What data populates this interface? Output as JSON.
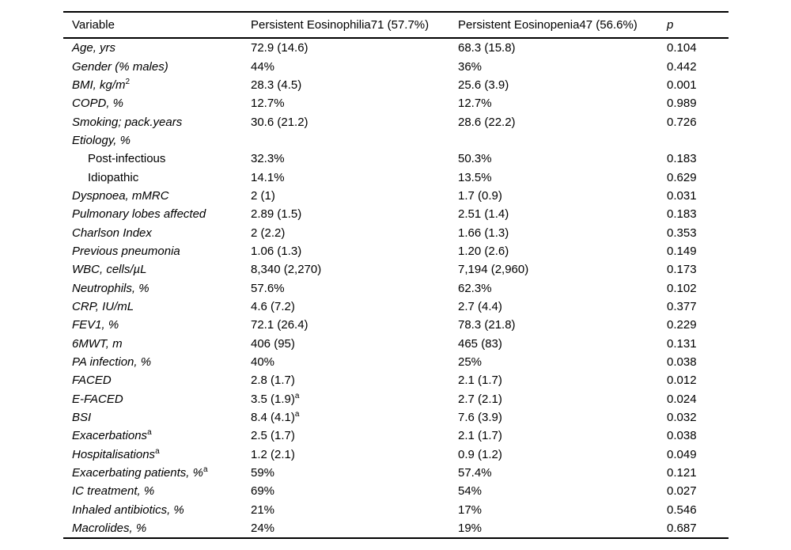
{
  "table": {
    "headers": [
      "Variable",
      "Persistent Eosinophilia71 (57.7%)",
      "Persistent Eosinopenia47 (56.6%)",
      "p"
    ],
    "rows": [
      {
        "label": "Age, yrs",
        "label_sup": "",
        "indent": false,
        "italic": true,
        "group1": "72.9 (14.6)",
        "group1_sup": "",
        "group2": "68.3 (15.8)",
        "p": "0.104"
      },
      {
        "label": "Gender (% males)",
        "label_sup": "",
        "indent": false,
        "italic": true,
        "group1": "44%",
        "group1_sup": "",
        "group2": "36%",
        "p": "0.442"
      },
      {
        "label": "BMI, kg/m",
        "label_sup": "2",
        "indent": false,
        "italic": true,
        "group1": "28.3 (4.5)",
        "group1_sup": "",
        "group2": "25.6 (3.9)",
        "p": "0.001"
      },
      {
        "label": "COPD, %",
        "label_sup": "",
        "indent": false,
        "italic": true,
        "group1": "12.7%",
        "group1_sup": "",
        "group2": "12.7%",
        "p": "0.989"
      },
      {
        "label": "Smoking; pack.years",
        "label_sup": "",
        "indent": false,
        "italic": true,
        "group1": "30.6 (21.2)",
        "group1_sup": "",
        "group2": "28.6 (22.2)",
        "p": "0.726"
      },
      {
        "label": "Etiology, %",
        "label_sup": "",
        "indent": false,
        "italic": true,
        "group1": "",
        "group1_sup": "",
        "group2": "",
        "p": ""
      },
      {
        "label": "Post-infectious",
        "label_sup": "",
        "indent": true,
        "italic": false,
        "group1": "32.3%",
        "group1_sup": "",
        "group2": "50.3%",
        "p": "0.183"
      },
      {
        "label": "Idiopathic",
        "label_sup": "",
        "indent": true,
        "italic": false,
        "group1": "14.1%",
        "group1_sup": "",
        "group2": "13.5%",
        "p": "0.629"
      },
      {
        "label": "Dyspnoea, mMRC",
        "label_sup": "",
        "indent": false,
        "italic": true,
        "group1": "2 (1)",
        "group1_sup": "",
        "group2": "1.7 (0.9)",
        "p": "0.031"
      },
      {
        "label": "Pulmonary lobes affected",
        "label_sup": "",
        "indent": false,
        "italic": true,
        "group1": "2.89 (1.5)",
        "group1_sup": "",
        "group2": "2.51 (1.4)",
        "p": "0.183"
      },
      {
        "label": "Charlson Index",
        "label_sup": "",
        "indent": false,
        "italic": true,
        "group1": "2 (2.2)",
        "group1_sup": "",
        "group2": "1.66 (1.3)",
        "p": "0.353"
      },
      {
        "label": "Previous pneumonia",
        "label_sup": "",
        "indent": false,
        "italic": true,
        "group1": "1.06 (1.3)",
        "group1_sup": "",
        "group2": "1.20 (2.6)",
        "p": "0.149"
      },
      {
        "label": "WBC, cells/µL",
        "label_sup": "",
        "indent": false,
        "italic": true,
        "group1": "8,340 (2,270)",
        "group1_sup": "",
        "group2": "7,194 (2,960)",
        "p": "0.173"
      },
      {
        "label": "Neutrophils, %",
        "label_sup": "",
        "indent": false,
        "italic": true,
        "group1": "57.6%",
        "group1_sup": "",
        "group2": "62.3%",
        "p": "0.102"
      },
      {
        "label": "CRP, IU/mL",
        "label_sup": "",
        "indent": false,
        "italic": true,
        "group1": "4.6 (7.2)",
        "group1_sup": "",
        "group2": "2.7 (4.4)",
        "p": "0.377"
      },
      {
        "label": "FEV1, %",
        "label_sup": "",
        "indent": false,
        "italic": true,
        "group1": "72.1 (26.4)",
        "group1_sup": "",
        "group2": "78.3 (21.8)",
        "p": "0.229"
      },
      {
        "label": "6MWT, m",
        "label_sup": "",
        "indent": false,
        "italic": true,
        "group1": "406 (95)",
        "group1_sup": "",
        "group2": "465 (83)",
        "p": "0.131"
      },
      {
        "label": "PA infection, %",
        "label_sup": "",
        "indent": false,
        "italic": true,
        "group1": "40%",
        "group1_sup": "",
        "group2": "25%",
        "p": "0.038"
      },
      {
        "label": "FACED",
        "label_sup": "",
        "indent": false,
        "italic": true,
        "group1": "2.8 (1.7)",
        "group1_sup": "",
        "group2": "2.1 (1.7)",
        "p": "0.012"
      },
      {
        "label": "E-FACED",
        "label_sup": "",
        "indent": false,
        "italic": true,
        "group1": "3.5 (1.9)",
        "group1_sup": "a",
        "group2": "2.7 (2.1)",
        "p": "0.024"
      },
      {
        "label": "BSI",
        "label_sup": "",
        "indent": false,
        "italic": true,
        "group1": "8.4 (4.1)",
        "group1_sup": "a",
        "group2": "7.6 (3.9)",
        "p": "0.032"
      },
      {
        "label": "Exacerbations",
        "label_sup": "a",
        "indent": false,
        "italic": true,
        "group1": "2.5 (1.7)",
        "group1_sup": "",
        "group2": "2.1 (1.7)",
        "p": "0.038"
      },
      {
        "label": "Hospitalisations",
        "label_sup": "a",
        "indent": false,
        "italic": true,
        "group1": "1.2 (2.1)",
        "group1_sup": "",
        "group2": "0.9 (1.2)",
        "p": "0.049"
      },
      {
        "label": "Exacerbating patients, %",
        "label_sup": "a",
        "indent": false,
        "italic": true,
        "group1": "59%",
        "group1_sup": "",
        "group2": "57.4%",
        "p": "0.121"
      },
      {
        "label": "IC treatment, %",
        "label_sup": "",
        "indent": false,
        "italic": true,
        "group1": "69%",
        "group1_sup": "",
        "group2": "54%",
        "p": "0.027"
      },
      {
        "label": "Inhaled antibiotics, %",
        "label_sup": "",
        "indent": false,
        "italic": true,
        "group1": "21%",
        "group1_sup": "",
        "group2": "17%",
        "p": "0.546"
      },
      {
        "label": "Macrolides, %",
        "label_sup": "",
        "indent": false,
        "italic": true,
        "group1": "24%",
        "group1_sup": "",
        "group2": "19%",
        "p": "0.687"
      }
    ]
  }
}
